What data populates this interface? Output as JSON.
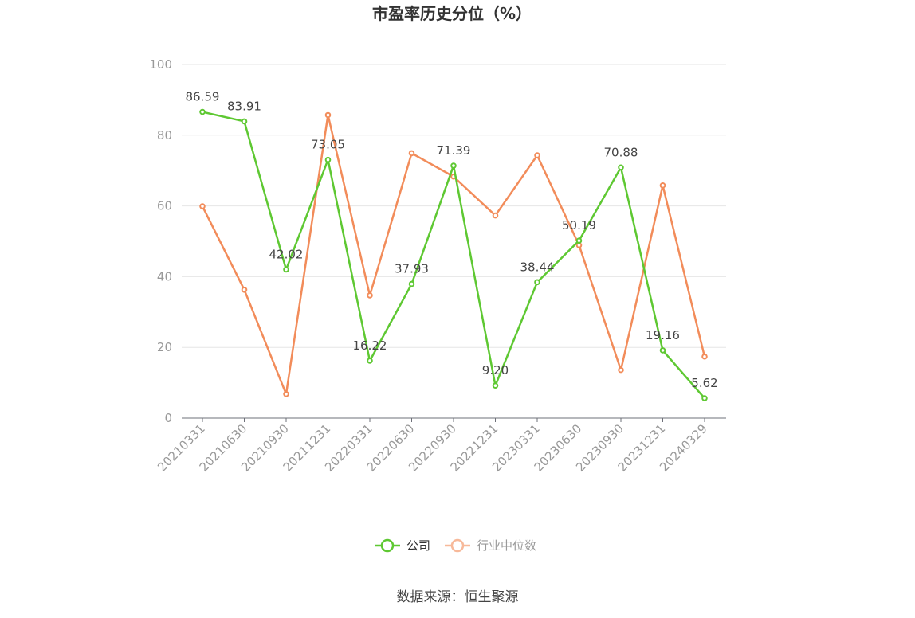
{
  "chart_data": {
    "type": "line",
    "title": "市盈率历史分位（%）",
    "categories": [
      "20210331",
      "20210630",
      "20210930",
      "20211231",
      "20220331",
      "20220630",
      "20220930",
      "20221231",
      "20230331",
      "20230630",
      "20230930",
      "20231231",
      "20240329"
    ],
    "ylim": [
      0,
      100
    ],
    "yticks": [
      0,
      20,
      40,
      60,
      80,
      100
    ],
    "grid": true,
    "legend_position": "bottom-center",
    "series": [
      {
        "name": "公司",
        "color": "#5ec832",
        "values": [
          86.59,
          83.91,
          42.02,
          73.05,
          16.22,
          37.93,
          71.39,
          9.2,
          38.44,
          50.19,
          70.88,
          19.16,
          5.62
        ],
        "labels": [
          "86.59",
          "83.91",
          "42.02",
          "73.05",
          "16.22",
          "37.93",
          "71.39",
          "9.20",
          "38.44",
          "50.19",
          "70.88",
          "19.16",
          "5.62"
        ]
      },
      {
        "name": "行业中位数",
        "color": "#f28c5a",
        "legend_color": "#f7b99a",
        "values": [
          59.9,
          36.3,
          6.8,
          85.7,
          34.7,
          74.9,
          68.3,
          57.3,
          74.3,
          48.9,
          13.6,
          65.8,
          17.4
        ]
      }
    ]
  },
  "source_text": "数据来源：恒生聚源"
}
